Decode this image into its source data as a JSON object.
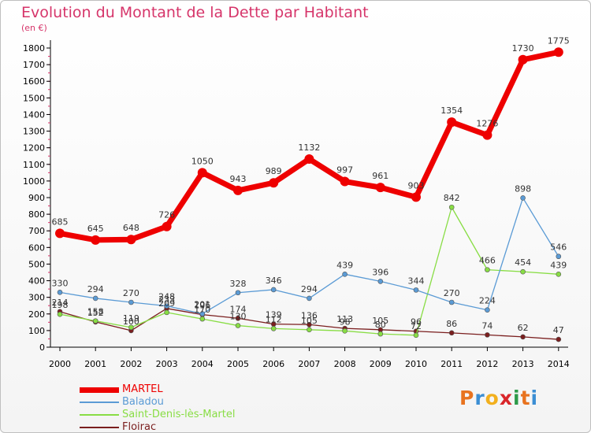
{
  "title": "Evolution du Montant de la Dette par Habitant",
  "subtitle": "(en €)",
  "logo": {
    "text": "Proxiti",
    "colors": [
      "#e8731f",
      "#3b8ed4",
      "#f2b01e",
      "#d9262a",
      "#2e9a4a",
      "#e8731f",
      "#3b8ed4"
    ]
  },
  "chart_data": {
    "type": "line",
    "title": "Evolution du Montant de la Dette par Habitant",
    "ylabel": "(en €)",
    "xlabel": "",
    "x": [
      "2000",
      "2001",
      "2002",
      "2003",
      "2004",
      "2005",
      "2006",
      "2007",
      "2008",
      "2009",
      "2010",
      "2011",
      "2012",
      "2013",
      "2014"
    ],
    "ylim": [
      0,
      1800
    ],
    "yticks": [
      0,
      100,
      200,
      300,
      400,
      500,
      600,
      700,
      800,
      900,
      1000,
      1100,
      1200,
      1300,
      1400,
      1500,
      1600,
      1700,
      1800
    ],
    "grid": false,
    "legend": "bottom-left",
    "series": [
      {
        "name": "MARTEL",
        "color": "#ee0000",
        "values": [
          685,
          645,
          648,
          726,
          1050,
          943,
          989,
          1132,
          997,
          961,
          903,
          1354,
          1276,
          1730,
          1775
        ]
      },
      {
        "name": "Baladou",
        "color": "#5b9bd5",
        "values": [
          330,
          294,
          270,
          248,
          201,
          328,
          346,
          294,
          439,
          396,
          344,
          270,
          224,
          898,
          546
        ]
      },
      {
        "name": "Saint-Denis-lès-Martel",
        "color": "#88dd44",
        "values": [
          198,
          158,
          119,
          209,
          170,
          130,
          112,
          105,
          98,
          80,
          72,
          842,
          466,
          454,
          439
        ]
      },
      {
        "name": "Floirac",
        "color": "#7a1e1e",
        "values": [
          214,
          152,
          100,
          233,
          196,
          174,
          139,
          136,
          113,
          105,
          96,
          86,
          74,
          62,
          47
        ]
      }
    ]
  }
}
